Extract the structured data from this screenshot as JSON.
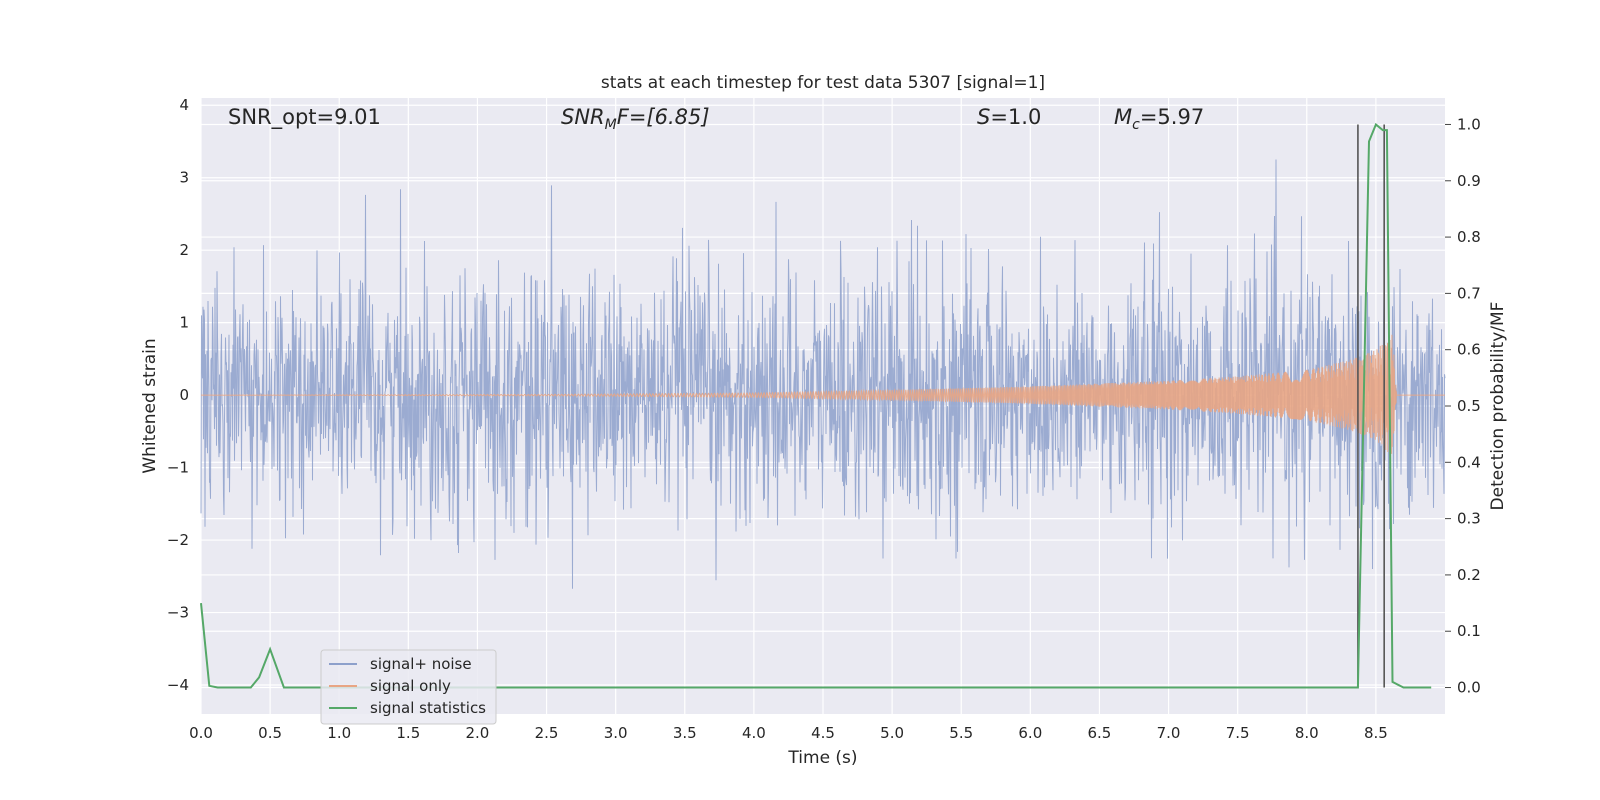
{
  "chart_data": {
    "type": "line",
    "title": "stats at each timestep for test data 5307 [signal=1]",
    "xlabel": "Time (s)",
    "ylabel": "Whitened strain",
    "y2label": "Detection probability/MF",
    "xlim": [
      0,
      9.0
    ],
    "ylim": [
      -4.4,
      4.1
    ],
    "y2lim": [
      -0.047,
      1.047
    ],
    "x_ticks": [
      0.0,
      0.5,
      1.0,
      1.5,
      2.0,
      2.5,
      3.0,
      3.5,
      4.0,
      4.5,
      5.0,
      5.5,
      6.0,
      6.5,
      7.0,
      7.5,
      8.0,
      8.5
    ],
    "y_ticks": [
      4,
      3,
      2,
      1,
      0,
      -1,
      -2,
      -3,
      -4
    ],
    "y2_ticks": [
      1.0,
      0.9,
      0.8,
      0.7,
      0.6,
      0.5,
      0.4,
      0.3,
      0.2,
      0.1,
      0.0
    ],
    "grid": true,
    "legend_position": "lower-left",
    "annotations": {
      "snr_opt": "SNR_opt=9.01",
      "snr_mf_base": "SNR",
      "snr_mf_sub": "M",
      "snr_mf_rest": "F=[6.85]",
      "s_sym": "S",
      "s_val": "=1.0",
      "mc_sym": "M",
      "mc_sub": "c",
      "mc_val": "=5.97"
    },
    "series": [
      {
        "name": "signal+ noise",
        "color": "#8da0cb",
        "axis": "left",
        "description_amplitude": 1.7,
        "noise_envelope": [
          [
            0.0,
            2.2
          ],
          [
            9.0,
            2.2
          ]
        ]
      },
      {
        "name": "signal only",
        "color": "#e8a584",
        "axis": "left",
        "chirp_envelope": [
          [
            0.0,
            0.0
          ],
          [
            2.5,
            0.01
          ],
          [
            4.0,
            0.03
          ],
          [
            5.0,
            0.07
          ],
          [
            6.0,
            0.12
          ],
          [
            7.0,
            0.2
          ],
          [
            7.5,
            0.26
          ],
          [
            8.0,
            0.35
          ],
          [
            8.3,
            0.48
          ],
          [
            8.5,
            0.62
          ],
          [
            8.62,
            0.85
          ],
          [
            8.65,
            0.0
          ],
          [
            9.0,
            0.0
          ]
        ]
      },
      {
        "name": "signal statistics",
        "color": "#55a868",
        "axis": "right",
        "x": [
          0.0,
          0.06,
          0.12,
          0.2,
          0.3,
          0.36,
          0.42,
          0.5,
          0.6,
          1.0,
          2.0,
          3.0,
          4.0,
          5.0,
          6.0,
          7.0,
          8.0,
          8.37,
          8.45,
          8.5,
          8.55,
          8.58,
          8.62,
          8.7,
          8.8,
          8.9
        ],
        "values": [
          0.15,
          0.003,
          0.0,
          0.0,
          0.0,
          0.0,
          0.018,
          0.068,
          0.0,
          0.0,
          0.0,
          0.0,
          0.0,
          0.0,
          0.0,
          0.0,
          0.0,
          0.0,
          0.97,
          1.0,
          0.99,
          0.99,
          0.01,
          0.0,
          0.0,
          0.0
        ]
      }
    ],
    "vlines": [
      {
        "x": 8.37,
        "color": "#555555"
      },
      {
        "x": 8.56,
        "color": "#555555"
      }
    ]
  }
}
